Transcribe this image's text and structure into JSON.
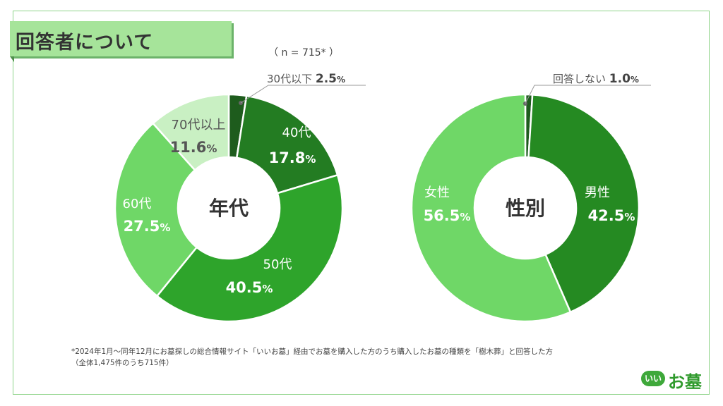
{
  "header": {
    "title": "回答者について"
  },
  "sample_size": "（ n = 715* ）",
  "chart_data": [
    {
      "type": "pie",
      "center_label": "年代",
      "slices": [
        {
          "label": "30代以下",
          "value": 2.5,
          "display": "2.5",
          "color": "#1e5c1d",
          "label_color": "#555555"
        },
        {
          "label": "40代",
          "value": 17.8,
          "display": "17.8",
          "color": "#237c22",
          "label_color": "#ffffff"
        },
        {
          "label": "50代",
          "value": 40.5,
          "display": "40.5",
          "color": "#2ea42b",
          "label_color": "#ffffff"
        },
        {
          "label": "60代",
          "value": 27.5,
          "display": "27.5",
          "color": "#6fd767",
          "label_color": "#ffffff"
        },
        {
          "label": "70代以上",
          "value": 11.6,
          "display": "11.6",
          "color": "#c9f0c3",
          "label_color": "#555555"
        }
      ]
    },
    {
      "type": "pie",
      "center_label": "性別",
      "slices": [
        {
          "label": "回答しない",
          "value": 1.0,
          "display": "1.0",
          "color": "#1e5c1d",
          "label_color": "#555555"
        },
        {
          "label": "男性",
          "value": 42.5,
          "display": "42.5",
          "color": "#258a22",
          "label_color": "#ffffff"
        },
        {
          "label": "女性",
          "value": 56.5,
          "display": "56.5",
          "color": "#6fd767",
          "label_color": "#ffffff"
        }
      ]
    }
  ],
  "percent_sign": "%",
  "footnote": {
    "line1": "*2024年1月～同年12月にお墓探しの総合情報サイト「いいお墓」経由でお墓を購入した方のうち購入したお墓の種類を「樹木葬」と回答した方",
    "line2": "（全体1,475件のうち715件）"
  },
  "logo": {
    "badge": "いい",
    "text": "お墓"
  }
}
